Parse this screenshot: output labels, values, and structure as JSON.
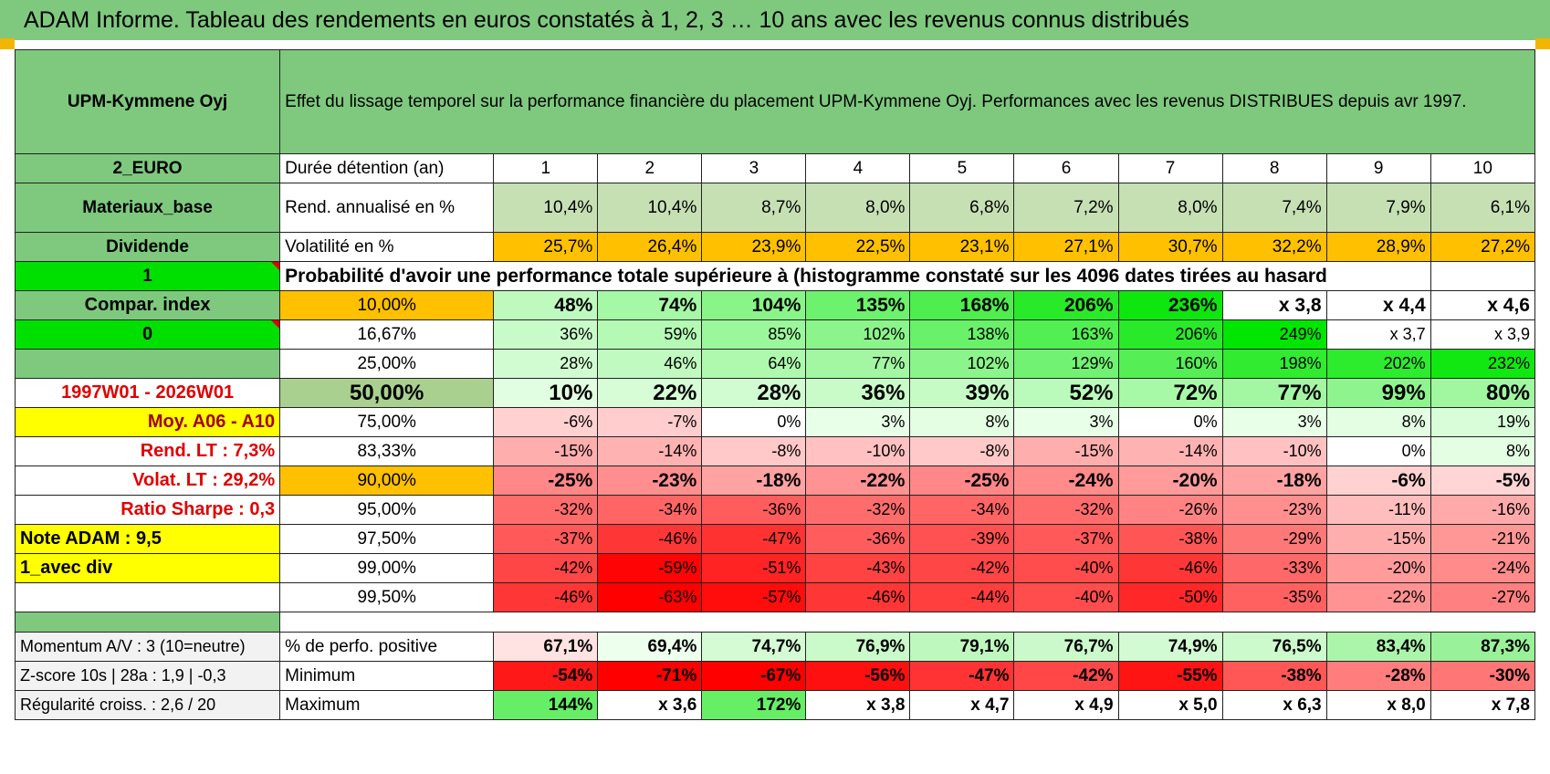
{
  "title": "ADAM Informe. Tableau des rendements en euros constatés à 1, 2, 3 … 10 ans avec les revenus connus distribués",
  "colors": {
    "green_header": "#7ec97e",
    "bright_green": "#00e000",
    "orange": "#ffc000",
    "yellow": "#ffff00",
    "red_text": "#e00000"
  },
  "asset_name": "UPM-Kymmene Oyj",
  "header_text": "Effet du lissage temporel sur la performance financière du placement UPM-Kymmene Oyj. Performances avec les revenus DISTRIBUES depuis avr 1997.",
  "rows": [
    {
      "left": "2_EURO",
      "label": "Durée détention (an)",
      "values": [
        "1",
        "2",
        "3",
        "4",
        "5",
        "6",
        "7",
        "8",
        "9",
        "10"
      ]
    },
    {
      "left": "Materiaux_base",
      "label": "Rend. annualisé en %",
      "values": [
        "10,4%",
        "10,4%",
        "8,7%",
        "8,0%",
        "6,8%",
        "7,2%",
        "8,0%",
        "7,4%",
        "7,9%",
        "6,1%"
      ]
    },
    {
      "left": "Dividende",
      "label": "Volatilité en %",
      "values": [
        "25,7%",
        "26,4%",
        "23,9%",
        "22,5%",
        "23,1%",
        "27,1%",
        "30,7%",
        "32,2%",
        "28,9%",
        "27,2%"
      ]
    }
  ],
  "prob_row": {
    "left": "1",
    "text": "Probabilité d'avoir une performance totale supérieure à (histogramme constaté sur les 4096 dates tirées au hasard)"
  },
  "pct_rows": [
    {
      "left": "Compar. index",
      "label": "10,00%",
      "values": [
        "48%",
        "74%",
        "104%",
        "135%",
        "168%",
        "206%",
        "236%",
        "x 3,8",
        "x 4,4",
        "x 4,6"
      ]
    },
    {
      "left": "0",
      "label": "16,67%",
      "values": [
        "36%",
        "59%",
        "85%",
        "102%",
        "138%",
        "163%",
        "206%",
        "249%",
        "x 3,7",
        "x 3,9"
      ]
    },
    {
      "left": "",
      "label": "25,00%",
      "values": [
        "28%",
        "46%",
        "64%",
        "77%",
        "102%",
        "129%",
        "160%",
        "198%",
        "202%",
        "232%"
      ]
    },
    {
      "left": "1997W01 - 2026W01",
      "label": "50,00%",
      "values": [
        "10%",
        "22%",
        "28%",
        "36%",
        "39%",
        "52%",
        "72%",
        "77%",
        "99%",
        "80%"
      ]
    },
    {
      "left": "Moy. A06 - A10",
      "label": "75,00%",
      "values": [
        "-6%",
        "-7%",
        "0%",
        "3%",
        "8%",
        "3%",
        "0%",
        "3%",
        "8%",
        "19%"
      ]
    },
    {
      "left": "Rend. LT :    7,3%",
      "label": "83,33%",
      "values": [
        "-15%",
        "-14%",
        "-8%",
        "-10%",
        "-8%",
        "-15%",
        "-14%",
        "-10%",
        "0%",
        "8%"
      ]
    },
    {
      "left": "Volat. LT :    29,2%",
      "label": "90,00%",
      "values": [
        "-25%",
        "-23%",
        "-18%",
        "-22%",
        "-25%",
        "-24%",
        "-20%",
        "-18%",
        "-6%",
        "-5%"
      ]
    },
    {
      "left": "Ratio Sharpe :     0,3",
      "label": "95,00%",
      "values": [
        "-32%",
        "-34%",
        "-36%",
        "-32%",
        "-34%",
        "-32%",
        "-26%",
        "-23%",
        "-11%",
        "-16%"
      ]
    },
    {
      "left": "Note ADAM : 9,5",
      "label": "97,50%",
      "values": [
        "-37%",
        "-46%",
        "-47%",
        "-36%",
        "-39%",
        "-37%",
        "-38%",
        "-29%",
        "-15%",
        "-21%"
      ]
    },
    {
      "left": "1_avec div",
      "label": "99,00%",
      "values": [
        "-42%",
        "-59%",
        "-51%",
        "-43%",
        "-42%",
        "-40%",
        "-46%",
        "-33%",
        "-20%",
        "-24%"
      ]
    },
    {
      "left": "",
      "label": "99,50%",
      "values": [
        "-46%",
        "-63%",
        "-57%",
        "-46%",
        "-44%",
        "-40%",
        "-50%",
        "-35%",
        "-22%",
        "-27%"
      ]
    }
  ],
  "stats_rows": [
    {
      "left": "Momentum A/V : 3 (10=neutre)",
      "label": "% de perfo. positive",
      "values": [
        "67,1%",
        "69,4%",
        "74,7%",
        "76,9%",
        "79,1%",
        "76,7%",
        "74,9%",
        "76,5%",
        "83,4%",
        "87,3%"
      ]
    },
    {
      "left": "Z-score 10s | 28a : 1,9 | -0,3",
      "label": "Minimum",
      "values": [
        "-54%",
        "-71%",
        "-67%",
        "-56%",
        "-47%",
        "-42%",
        "-55%",
        "-38%",
        "-28%",
        "-30%"
      ]
    },
    {
      "left": "Régularité croiss. : 2,6 / 20",
      "label": "Maximum",
      "values": [
        "144%",
        "x 3,6",
        "172%",
        "x 3,8",
        "x 4,7",
        "x 4,9",
        "x 5,0",
        "x 6,3",
        "x 8,0",
        "x 7,8"
      ]
    }
  ]
}
